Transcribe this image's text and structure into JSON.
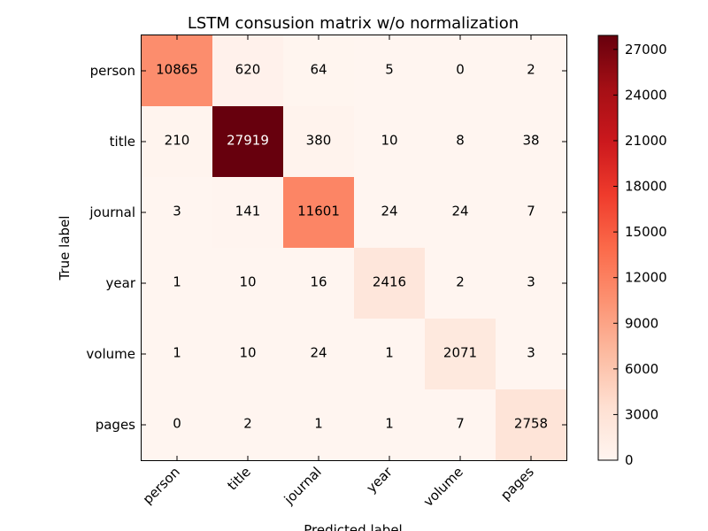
{
  "chart_data": {
    "type": "heatmap",
    "title": "LSTM consusion matrix w/o normalization",
    "xlabel": "Predicted label",
    "ylabel": "True label",
    "x_categories": [
      "person",
      "title",
      "journal",
      "year",
      "volume",
      "pages"
    ],
    "y_categories": [
      "person",
      "title",
      "journal",
      "year",
      "volume",
      "pages"
    ],
    "matrix": [
      [
        10865,
        620,
        64,
        5,
        0,
        2
      ],
      [
        210,
        27919,
        380,
        10,
        8,
        38
      ],
      [
        3,
        141,
        11601,
        24,
        24,
        7
      ],
      [
        1,
        10,
        16,
        2416,
        2,
        3
      ],
      [
        1,
        10,
        24,
        1,
        2071,
        3
      ],
      [
        0,
        2,
        1,
        1,
        7,
        2758
      ]
    ],
    "colormap": "Reds",
    "colorbar": {
      "min": 0,
      "max": 27919,
      "ticks": [
        0,
        3000,
        6000,
        9000,
        12000,
        15000,
        18000,
        21000,
        24000,
        27000
      ]
    }
  }
}
